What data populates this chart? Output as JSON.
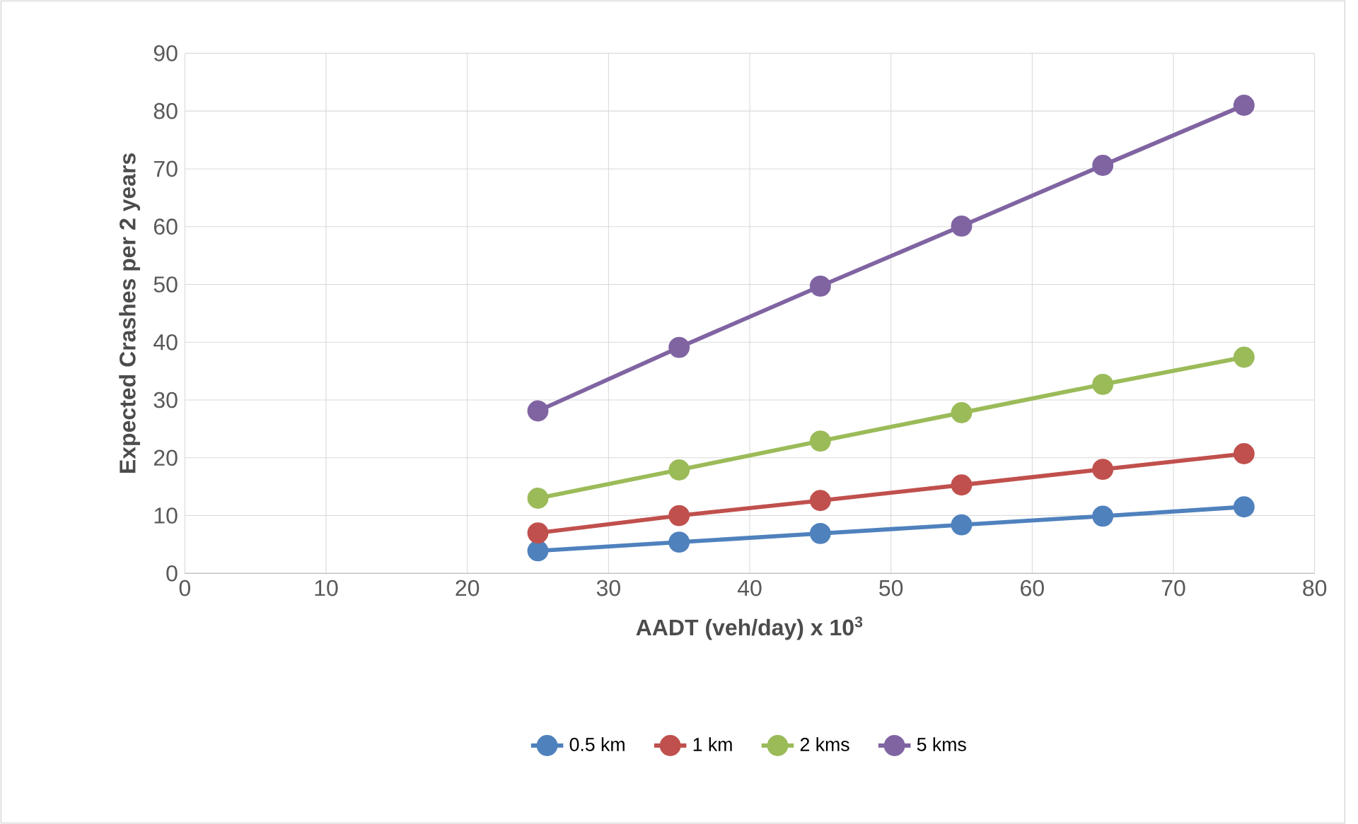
{
  "chart_data": {
    "type": "line",
    "xlabel": "AADT (veh/day) x 10$^{3}$",
    "ylabel": "Expected Crashes per 2 years",
    "x": [
      25,
      35,
      45,
      55,
      65,
      75
    ],
    "series": [
      {
        "name": "0.5 km",
        "color": "#4f81bd",
        "values": [
          3.9,
          5.4,
          6.9,
          8.4,
          9.9,
          11.5
        ]
      },
      {
        "name": "1 km",
        "color": "#c0504d",
        "values": [
          7.0,
          10.0,
          12.6,
          15.3,
          18.0,
          20.7
        ]
      },
      {
        "name": "2 kms",
        "color": "#9bbb59",
        "values": [
          13.0,
          17.9,
          22.9,
          27.8,
          32.7,
          37.4
        ]
      },
      {
        "name": "5 kms",
        "color": "#8064a2",
        "values": [
          28.1,
          39.1,
          49.7,
          60.1,
          70.6,
          81.0
        ]
      }
    ],
    "xlim": [
      0,
      80
    ],
    "xticks": [
      0,
      10,
      20,
      30,
      40,
      50,
      60,
      70,
      80
    ],
    "ylim": [
      0,
      90
    ],
    "yticks": [
      0,
      10,
      20,
      30,
      40,
      50,
      60,
      70,
      80,
      90
    ],
    "grid": true,
    "legend": "bottom",
    "marker": "circle",
    "line_style": "solid"
  }
}
